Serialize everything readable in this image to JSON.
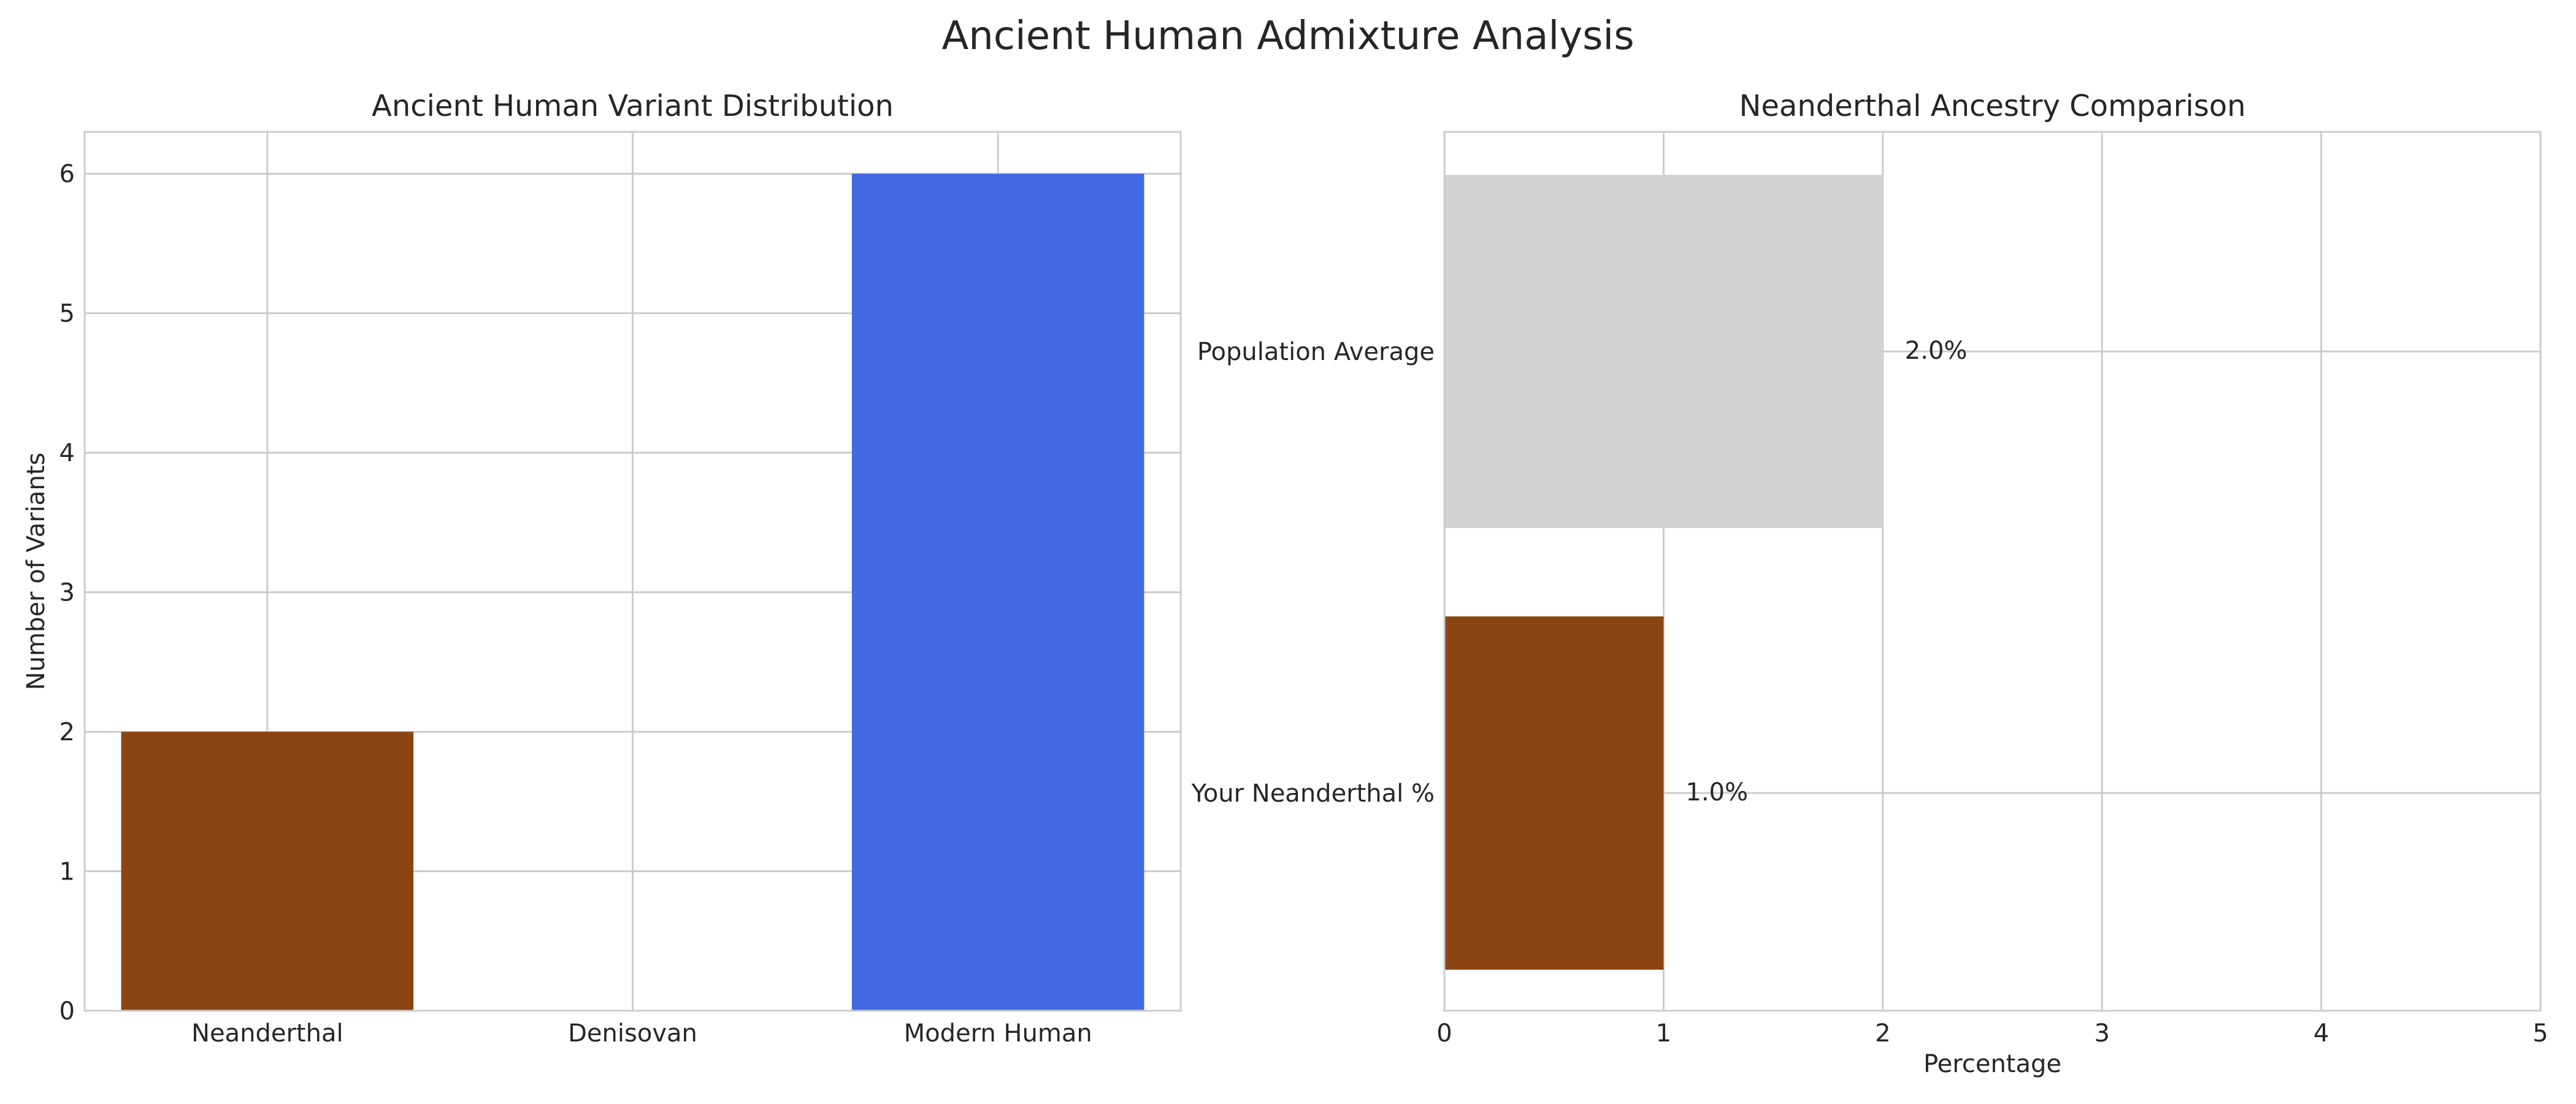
{
  "figure": {
    "title": "Ancient Human Admixture Analysis"
  },
  "chart_data": [
    {
      "type": "bar",
      "title": "Ancient Human Variant Distribution",
      "xlabel": "",
      "ylabel": "Number of Variants",
      "categories": [
        "Neanderthal",
        "Denisovan",
        "Modern Human"
      ],
      "values": [
        2,
        0,
        6
      ],
      "colors": [
        "#8B4513",
        "#8B4513",
        "#4169E1"
      ],
      "ylim": [
        0,
        6.3
      ],
      "yticks": [
        0,
        1,
        2,
        3,
        4,
        5,
        6
      ],
      "grid": true
    },
    {
      "type": "bar",
      "orientation": "horizontal",
      "title": "Neanderthal Ancestry Comparison",
      "xlabel": "Percentage",
      "ylabel": "",
      "categories": [
        "Your Neanderthal %",
        "Population Average"
      ],
      "values": [
        1.0,
        2.0
      ],
      "data_labels": [
        "1.0%",
        "2.0%"
      ],
      "colors": [
        "#8B4513",
        "#D3D3D3"
      ],
      "xlim": [
        0,
        5
      ],
      "xticks": [
        0,
        1,
        2,
        3,
        4,
        5
      ],
      "grid": true
    }
  ]
}
